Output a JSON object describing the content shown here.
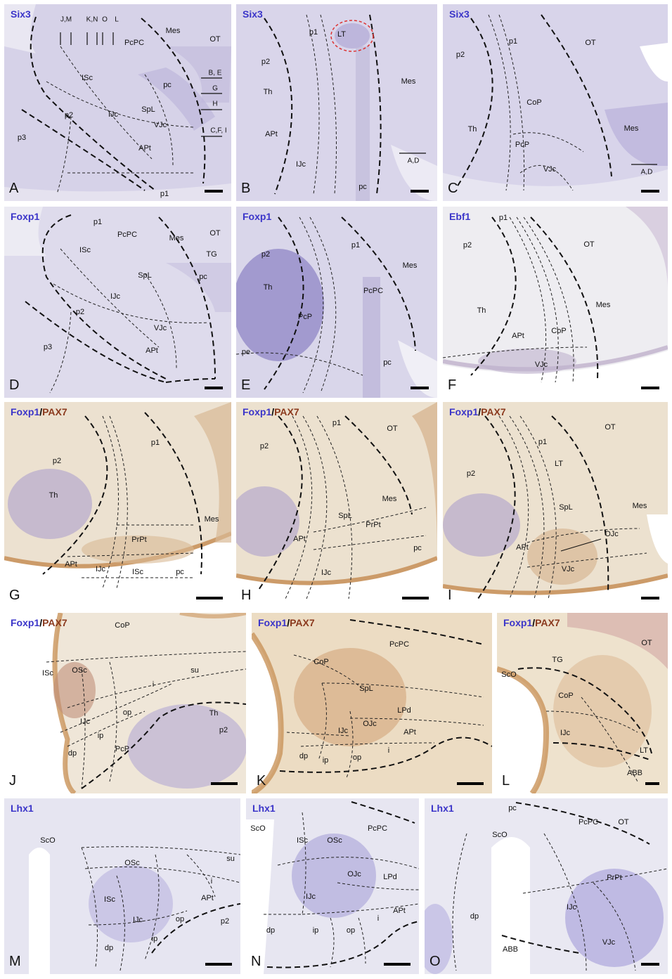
{
  "panels": {
    "A": {
      "letter": "A",
      "marker": "Six3",
      "labels": {
        "mes": "Mes",
        "ot": "OT",
        "pcpc": "PcPC",
        "isc": "ISc",
        "pc": "pc",
        "spl": "SpL",
        "ijc": "IJc",
        "vjc": "VJc",
        "apt": "APt",
        "p2": "p2",
        "p3": "p3",
        "p1": "p1"
      },
      "levels": {
        "jm": "J,M",
        "kn": "K,N",
        "o": "O",
        "l": "L",
        "be": "B, E",
        "g": "G",
        "h": "H",
        "cfi": "C,F, I"
      }
    },
    "B": {
      "letter": "B",
      "marker": "Six3",
      "labels": {
        "p1": "p1",
        "lt": "LT",
        "p2": "p2",
        "th": "Th",
        "mes": "Mes",
        "apt": "APt",
        "ijc": "IJc",
        "pc": "pc"
      },
      "levels": {
        "ad": "A,D"
      }
    },
    "C": {
      "letter": "C",
      "marker": "Six3",
      "labels": {
        "p2": "p2",
        "p1": "p1",
        "ot": "OT",
        "cop": "CoP",
        "th": "Th",
        "mes": "Mes",
        "pcp": "PcP",
        "vjc": "VJc"
      },
      "levels": {
        "ad": "A,D"
      }
    },
    "D": {
      "letter": "D",
      "marker": "Foxp1",
      "labels": {
        "p1": "p1",
        "pcpc": "PcPC",
        "mes": "Mes",
        "ot": "OT",
        "isc": "ISc",
        "tg": "TG",
        "spl": "SpL",
        "pc": "pc",
        "ijc": "IJc",
        "p2": "p2",
        "vjc": "VJc",
        "apt": "APt",
        "p3": "p3"
      }
    },
    "E": {
      "letter": "E",
      "marker": "Foxp1",
      "labels": {
        "p2": "p2",
        "p1": "p1",
        "mes": "Mes",
        "th": "Th",
        "pcpc": "PcPC",
        "pcp": "PcP",
        "pe": "pe",
        "pc": "pc"
      }
    },
    "F": {
      "letter": "F",
      "marker": "Ebf1",
      "labels": {
        "p1": "p1",
        "p2": "p2",
        "ot": "OT",
        "th": "Th",
        "mes": "Mes",
        "apt": "APt",
        "cop": "CoP",
        "vjc": "VJc"
      }
    },
    "G": {
      "letter": "G",
      "marker1": "Foxp1",
      "slash": "/",
      "marker2": "PAX7",
      "labels": {
        "p1": "p1",
        "p2": "p2",
        "th": "Th",
        "mes": "Mes",
        "prpt": "PrPt",
        "apt": "APt",
        "ijc": "IJc",
        "isc": "ISc",
        "pc": "pc"
      }
    },
    "H": {
      "letter": "H",
      "marker1": "Foxp1",
      "slash": "/",
      "marker2": "PAX7",
      "labels": {
        "p1": "p1",
        "ot": "OT",
        "p2": "p2",
        "mes": "Mes",
        "spl": "SpL",
        "prpt": "PrPt",
        "apt": "APt",
        "pc": "pc",
        "ijc": "IJc"
      }
    },
    "I": {
      "letter": "I",
      "marker1": "Foxp1",
      "slash": "/",
      "marker2": "PAX7",
      "labels": {
        "ot": "OT",
        "p1": "p1",
        "lt": "LT",
        "p2": "p2",
        "mes": "Mes",
        "spl": "SpL",
        "ojc": "OJc",
        "apt": "APt",
        "vjc": "VJc"
      }
    },
    "J": {
      "letter": "J",
      "marker1": "Foxp1",
      "slash": "/",
      "marker2": "PAX7",
      "labels": {
        "cop": "CoP",
        "isc": "ISc",
        "osc": "OSc",
        "su": "su",
        "i": "i",
        "th": "Th",
        "op": "op",
        "ijc": "IJc",
        "ip": "ip",
        "p2": "p2",
        "pcp": "PcP",
        "dp": "dp"
      }
    },
    "K": {
      "letter": "K",
      "marker1": "Foxp1",
      "slash": "/",
      "marker2": "PAX7",
      "labels": {
        "pcpc": "PcPC",
        "cop": "CoP",
        "spl": "SpL",
        "lpd": "LPd",
        "ijc": "IJc",
        "ojc": "OJc",
        "apt": "APt",
        "dp": "dp",
        "op": "op",
        "ip": "ip",
        "i": "i"
      }
    },
    "L": {
      "letter": "L",
      "marker1": "Foxp1",
      "slash": "/",
      "marker2": "PAX7",
      "labels": {
        "ot": "OT",
        "tg": "TG",
        "sco": "ScO",
        "cop": "CoP",
        "ijc": "IJc",
        "lt": "LT",
        "abb": "ABB"
      }
    },
    "M": {
      "letter": "M",
      "marker": "Lhx1",
      "labels": {
        "sco": "ScO",
        "osc": "OSc",
        "su": "su",
        "i": "i",
        "isc": "ISc",
        "apt": "APt",
        "ijc": "IJc",
        "op": "op",
        "p2": "p2",
        "ip": "ip",
        "dp": "dp"
      }
    },
    "N": {
      "letter": "N",
      "marker": "Lhx1",
      "labels": {
        "sco": "ScO",
        "pcpc": "PcPC",
        "isc": "ISc",
        "osc": "OSc",
        "ojc": "OJc",
        "lpd": "LPd",
        "ijc": "IJc",
        "apt": "APt",
        "i": "i",
        "dp": "dp",
        "ip": "ip",
        "op": "op"
      }
    },
    "O": {
      "letter": "O",
      "marker": "Lhx1",
      "labels": {
        "pc": "pc",
        "pcpc": "PcPC",
        "ot": "OT",
        "sco": "ScO",
        "prpt": "PrPt",
        "dp": "dp",
        "ijc": "IJc",
        "abb": "ABB",
        "vjc": "VJc"
      }
    }
  },
  "colors": {
    "ish_blue": "#3b35c9",
    "pax7_brown": "#8b3a1e",
    "ish_bg": "#d7d3e8",
    "pax_bg": "#ead9c0",
    "lhx_bg": "#e2e2f0"
  }
}
